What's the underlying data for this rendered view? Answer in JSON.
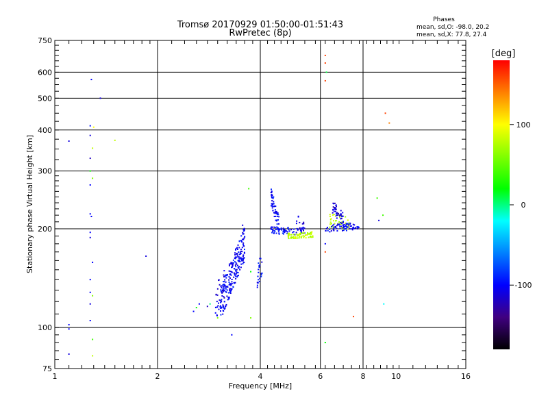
{
  "header": {
    "title_line1": "Tromsø 20170929 01:50:00-01:51:43",
    "title_line2": "RwPretec (8p)",
    "stats_title": "Phases",
    "stats_o": "mean, sd,O: -98.0, 20.2",
    "stats_x": "mean, sd,X:  77.8, 27.4"
  },
  "chart_data": {
    "type": "scatter",
    "xlabel": "Frequency [MHz]",
    "ylabel": "Stationary phase Virtual Height [km]",
    "xscale": "log",
    "yscale": "log",
    "xlim": [
      1,
      16
    ],
    "ylim": [
      75,
      750
    ],
    "x_ticks": [
      1,
      2,
      4,
      6,
      8,
      10,
      16
    ],
    "y_ticks": [
      75,
      100,
      200,
      300,
      400,
      500,
      600,
      750
    ],
    "x_major_grid": [
      2,
      4,
      6,
      8
    ],
    "y_major_grid": [
      100,
      200,
      300,
      400,
      500,
      600
    ],
    "colorbar": {
      "label": "[deg]",
      "range": [
        -180,
        180
      ],
      "ticks": [
        100,
        0,
        -100
      ],
      "colors": [
        "#ff0000",
        "#ff8000",
        "#ffff00",
        "#80ff00",
        "#00ff00",
        "#00ffff",
        "#0080ff",
        "#0000ff",
        "#400080",
        "#000000"
      ]
    },
    "points": [
      [
        1.28,
        570,
        -100
      ],
      [
        1.36,
        500,
        -110
      ],
      [
        1.27,
        412,
        -95
      ],
      [
        1.3,
        408,
        100
      ],
      [
        1.27,
        385,
        -110
      ],
      [
        1.29,
        352,
        80
      ],
      [
        1.27,
        328,
        -120
      ],
      [
        1.27,
        300,
        20
      ],
      [
        1.29,
        285,
        60
      ],
      [
        1.27,
        272,
        -100
      ],
      [
        1.27,
        222,
        -100
      ],
      [
        1.28,
        218,
        -100
      ],
      [
        1.27,
        195,
        -100
      ],
      [
        1.27,
        188,
        -110
      ],
      [
        1.29,
        158,
        -100
      ],
      [
        1.27,
        140,
        -100
      ],
      [
        1.27,
        128,
        -100
      ],
      [
        1.29,
        125,
        60
      ],
      [
        1.27,
        118,
        -110
      ],
      [
        1.27,
        105,
        -100
      ],
      [
        1.29,
        92,
        40
      ],
      [
        1.29,
        82,
        80
      ],
      [
        1.1,
        370,
        -110
      ],
      [
        1.1,
        102,
        -100
      ],
      [
        1.1,
        99,
        -100
      ],
      [
        1.1,
        83,
        -110
      ],
      [
        1.5,
        372,
        80
      ],
      [
        1.85,
        165,
        -110
      ],
      [
        2.55,
        112,
        -100
      ],
      [
        2.6,
        115,
        20
      ],
      [
        2.65,
        118,
        -100
      ],
      [
        2.8,
        116,
        -120
      ],
      [
        2.85,
        118,
        0
      ],
      [
        3.0,
        107,
        60
      ],
      [
        3.3,
        95,
        -100
      ],
      [
        3.55,
        205,
        -110
      ],
      [
        3.75,
        107,
        60
      ],
      [
        3.7,
        265,
        40
      ],
      [
        3.75,
        148,
        20
      ],
      [
        6.2,
        675,
        160
      ],
      [
        6.2,
        640,
        160
      ],
      [
        6.25,
        600,
        10
      ],
      [
        6.2,
        565,
        160
      ],
      [
        6.2,
        180,
        -100
      ],
      [
        6.2,
        170,
        160
      ],
      [
        6.2,
        90,
        20
      ],
      [
        7.5,
        108,
        160
      ],
      [
        8.8,
        248,
        40
      ],
      [
        9.15,
        220,
        40
      ],
      [
        8.9,
        212,
        -110
      ],
      [
        9.2,
        118,
        -20
      ],
      [
        9.3,
        450,
        160
      ],
      [
        9.55,
        420,
        140
      ]
    ],
    "clusters": [
      {
        "x0": 3.05,
        "x1": 3.6,
        "h0": 118,
        "h1": 180,
        "n": 230,
        "phase": -100,
        "jitter": 0.12,
        "seed": 7
      },
      {
        "x0": 2.95,
        "x1": 3.2,
        "h0": 118,
        "h1": 140,
        "n": 30,
        "phase": -110,
        "jitter": 0.12,
        "seed": 11
      },
      {
        "x0": 3.9,
        "x1": 4.05,
        "h0": 140,
        "h1": 158,
        "n": 22,
        "phase": -100,
        "jitter": 0.08,
        "seed": 13
      },
      {
        "x0": 4.3,
        "x1": 4.55,
        "h0": 250,
        "h1": 205,
        "n": 60,
        "phase": -100,
        "jitter": 0.06,
        "seed": 17
      },
      {
        "x0": 4.3,
        "x1": 5.4,
        "h0": 198,
        "h1": 196,
        "n": 70,
        "phase": -100,
        "jitter": 0.025,
        "seed": 19
      },
      {
        "x0": 4.8,
        "x1": 5.7,
        "h0": 190,
        "h1": 192,
        "n": 80,
        "phase": 80,
        "jitter": 0.02,
        "seed": 23
      },
      {
        "x0": 5.1,
        "x1": 5.4,
        "h0": 214,
        "h1": 200,
        "n": 14,
        "phase": -110,
        "jitter": 0.04,
        "seed": 29
      },
      {
        "x0": 6.3,
        "x1": 7.3,
        "h0": 212,
        "h1": 208,
        "n": 40,
        "phase": 80,
        "jitter": 0.05,
        "seed": 31
      },
      {
        "x0": 6.5,
        "x1": 7.0,
        "h0": 235,
        "h1": 212,
        "n": 45,
        "phase": -110,
        "jitter": 0.05,
        "seed": 37
      },
      {
        "x0": 6.2,
        "x1": 7.8,
        "h0": 200,
        "h1": 204,
        "n": 70,
        "phase": -100,
        "jitter": 0.025,
        "seed": 41
      }
    ]
  }
}
